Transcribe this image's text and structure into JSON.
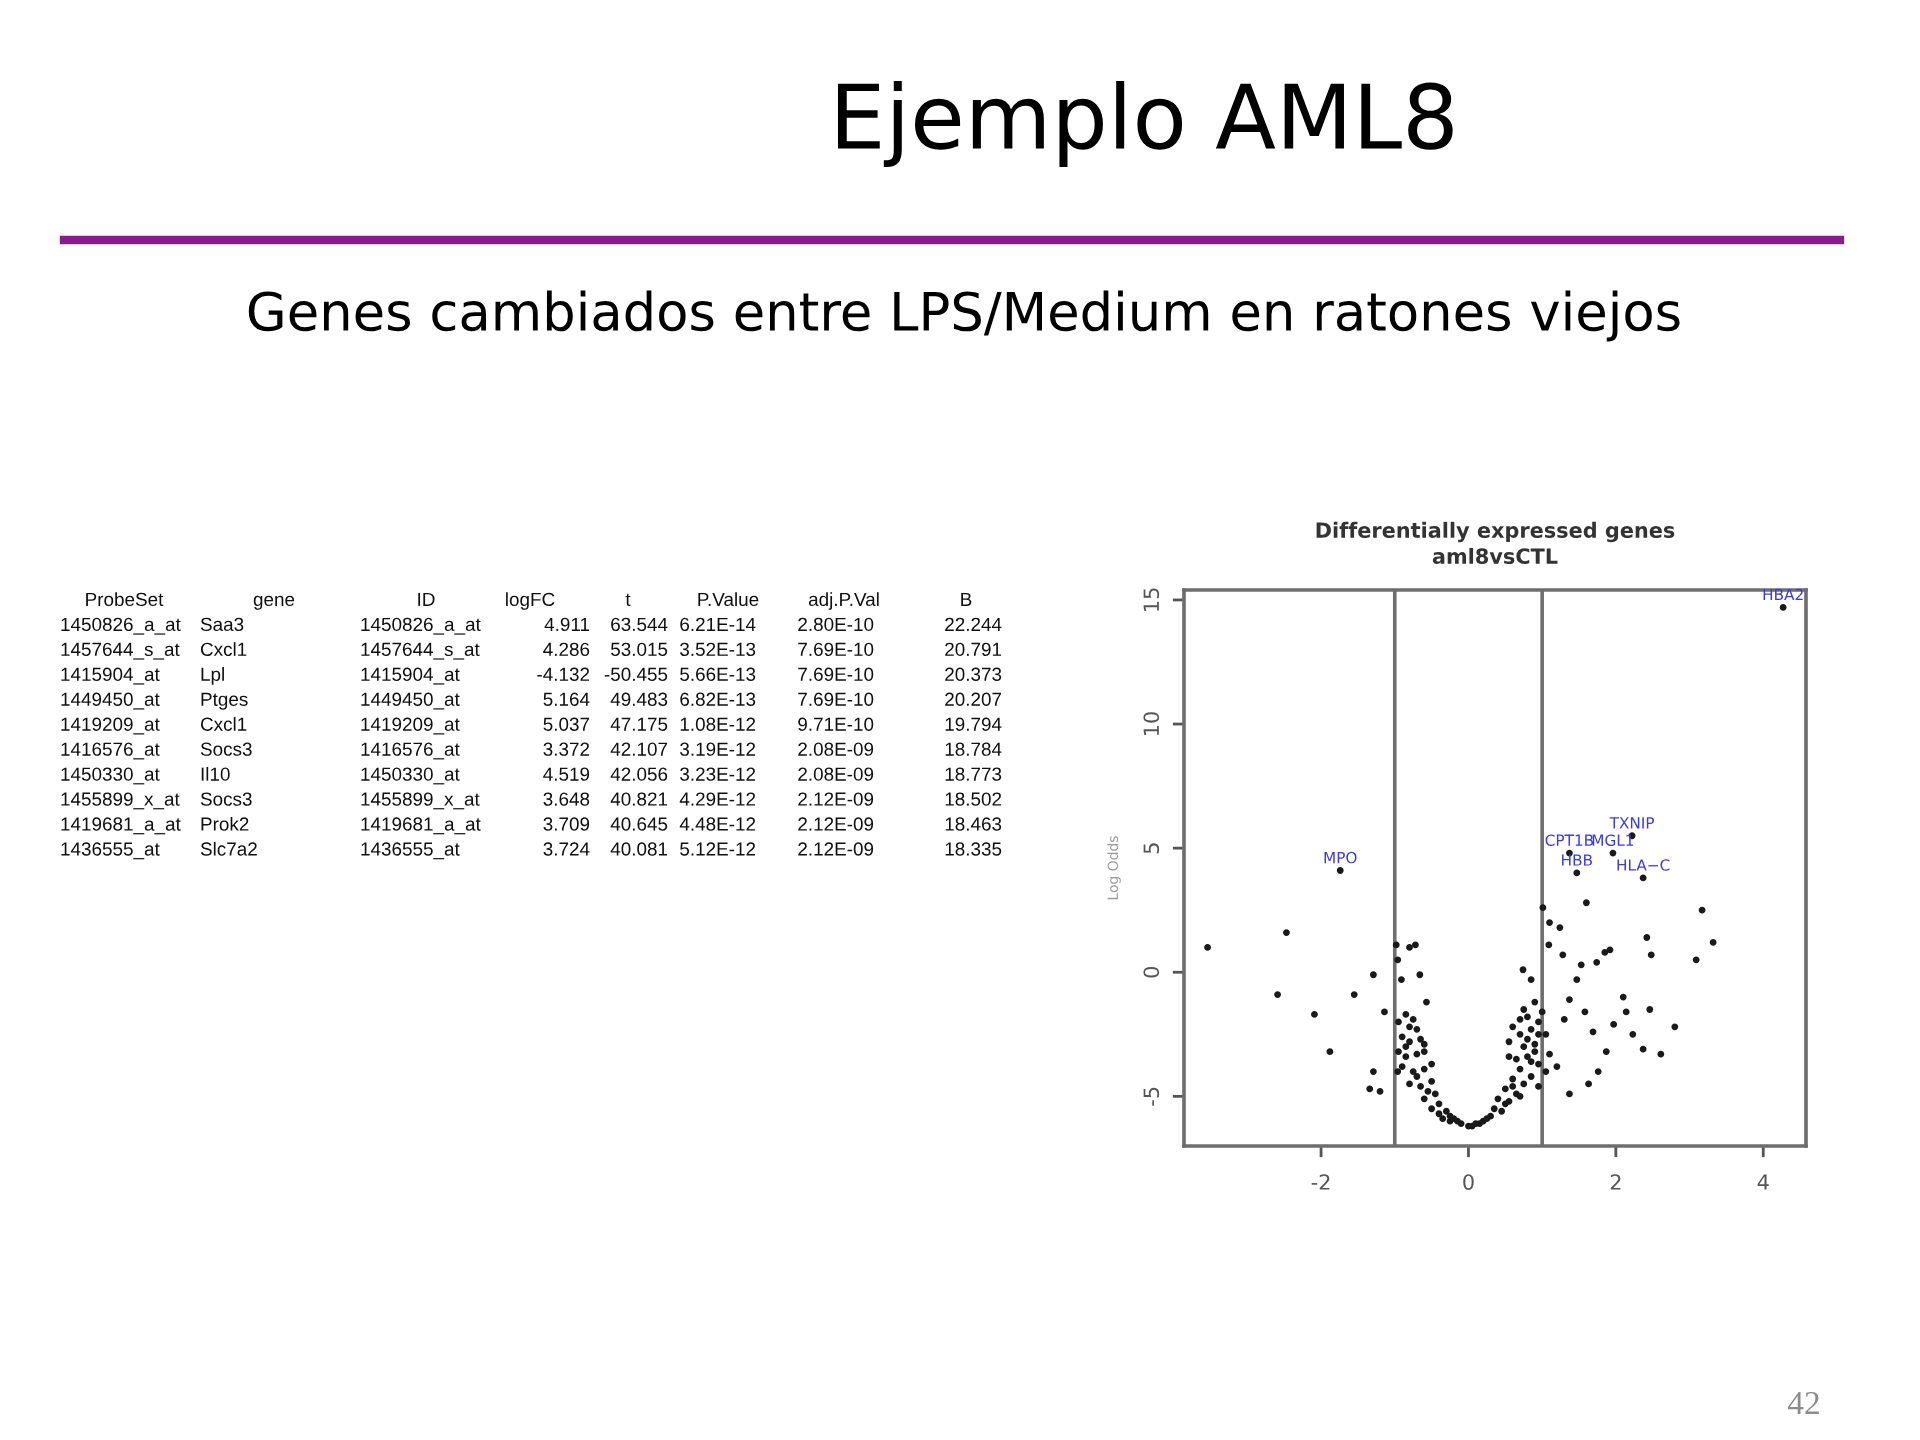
{
  "chart_data": [
    {
      "type": "other",
      "title": "Ejemplo AML8",
      "subtitle": "Genes cambiados entre LPS/Medium en ratones viejos",
      "categories": [
        "ProbeSet",
        "gene",
        "ID",
        "logFC",
        "t",
        "P.Value",
        "adj.P.Val",
        "B"
      ],
      "cell_labels": [
        [
          "1450826_a_at",
          "Saa3",
          "1450826_a_at",
          "4.911",
          "63.544",
          "6.21E-14",
          "2.80E-10",
          "22.244"
        ],
        [
          "1457644_s_at",
          "Cxcl1",
          "1457644_s_at",
          "4.286",
          "53.015",
          "3.52E-13",
          "7.69E-10",
          "20.791"
        ],
        [
          "1415904_at",
          "Lpl",
          "1415904_at",
          "-4.132",
          "-50.455",
          "5.66E-13",
          "7.69E-10",
          "20.373"
        ],
        [
          "1449450_at",
          "Ptges",
          "1449450_at",
          "5.164",
          "49.483",
          "6.82E-13",
          "7.69E-10",
          "20.207"
        ],
        [
          "1419209_at",
          "Cxcl1",
          "1419209_at",
          "5.037",
          "47.175",
          "1.08E-12",
          "9.71E-10",
          "19.794"
        ],
        [
          "1416576_at",
          "Socs3",
          "1416576_at",
          "3.372",
          "42.107",
          "3.19E-12",
          "2.08E-09",
          "18.784"
        ],
        [
          "1450330_at",
          "Il10",
          "1450330_at",
          "4.519",
          "42.056",
          "3.23E-12",
          "2.08E-09",
          "18.773"
        ],
        [
          "1455899_x_at",
          "Socs3",
          "1455899_x_at",
          "3.648",
          "40.821",
          "4.29E-12",
          "2.12E-09",
          "18.502"
        ],
        [
          "1419681_a_at",
          "Prok2",
          "1419681_a_at",
          "3.709",
          "40.645",
          "4.48E-12",
          "2.12E-09",
          "18.463"
        ],
        [
          "1436555_at",
          "Slc7a2",
          "1436555_at",
          "3.724",
          "40.081",
          "5.12E-12",
          "2.12E-09",
          "18.335"
        ]
      ],
      "annotations": [
        "42"
      ]
    },
    {
      "type": "scatter",
      "title": "Differentially expressed genes",
      "subtitle": "aml8vsCTL",
      "ylabel": "Log Odds",
      "marker": "circle",
      "series": [
        {
          "color": "#1a1a1a",
          "x": [
            -3.54,
            -2.47,
            -2.59,
            -2.09,
            -1.88,
            -1.55,
            -1.29,
            -1.29,
            -1.34,
            -1.2,
            -1.14,
            -0.98,
            -0.96,
            -0.8,
            -0.72,
            -0.91,
            -0.66,
            -0.57,
            -0.96,
            1.01,
            1.1,
            1.24,
            1.6,
            1.09,
            1.28,
            1.53,
            1.74,
            1.85,
            1.92,
            2.42,
            2.48,
            3.17,
            3.32,
            3.09,
            2.1,
            2.14,
            1.97,
            2.46,
            2.8,
            2.23,
            2.37,
            2.61,
            1.87,
            1.69,
            1.76,
            1.63,
            1.37,
            0.74,
            0.85,
            1.47,
            1.37,
            1.58,
            1.3,
            -0.95,
            -0.85,
            -0.75,
            -0.7,
            -0.9,
            -0.8,
            -0.65,
            -0.95,
            -0.85,
            -0.7,
            -0.6,
            -0.9,
            -0.75,
            -0.6,
            -0.5,
            -0.8,
            -0.65,
            -0.5,
            -0.45,
            -0.6,
            -0.4,
            -0.3,
            -0.5,
            -0.2,
            -0.35,
            -0.1,
            0,
            0.1,
            0.2,
            -0.25,
            0.3,
            0.35,
            0.45,
            0.4,
            0.55,
            0.5,
            0.65,
            0.6,
            0.75,
            0.7,
            0.85,
            0.95,
            0.65,
            0.8,
            0.95,
            0.75,
            0.9,
            0.7,
            0.85,
            0.95,
            0.8,
            0.9,
            0.75,
            0.6,
            0.55,
            1.05,
            1.1,
            1.2,
            1.05,
            0.55,
            -0.85,
            -0.7,
            -0.55,
            -0.4,
            -0.25,
            -0.15,
            -0.8,
            -0.6,
            0.05,
            0.15,
            0.25,
            0.5,
            0.7,
            0.85,
            0.6,
            0.9,
            0.8,
            0.95,
            1.0,
            0.7,
            4.27,
            2.22,
            1.37,
            1.96,
            -1.74,
            1.47,
            2.37
          ],
          "values": [
            1.0,
            1.6,
            -0.9,
            -1.7,
            -3.2,
            -0.9,
            -0.1,
            -4.0,
            -4.7,
            -4.8,
            -1.6,
            1.1,
            0.5,
            1.0,
            1.1,
            -0.3,
            -0.1,
            -1.2,
            -4.0,
            2.6,
            2.0,
            1.8,
            2.8,
            1.1,
            0.7,
            0.3,
            0.4,
            0.8,
            0.9,
            1.4,
            0.7,
            2.5,
            1.2,
            0.5,
            -1.0,
            -1.6,
            -2.1,
            -1.5,
            -2.2,
            -2.5,
            -3.1,
            -3.3,
            -3.2,
            -2.4,
            -4.0,
            -4.5,
            -4.9,
            0.1,
            -0.3,
            -0.3,
            -1.1,
            -1.6,
            -1.9,
            -2.0,
            -1.7,
            -1.9,
            -2.3,
            -2.6,
            -2.8,
            -2.7,
            -3.2,
            -3.4,
            -3.3,
            -3.2,
            -3.8,
            -4.0,
            -3.9,
            -3.7,
            -4.5,
            -4.6,
            -4.4,
            -4.9,
            -5.1,
            -5.3,
            -5.6,
            -5.5,
            -5.9,
            -5.9,
            -6.1,
            -6.2,
            -6.1,
            -6.0,
            -6.0,
            -5.8,
            -5.5,
            -5.6,
            -5.1,
            -5.2,
            -4.7,
            -4.9,
            -4.3,
            -4.5,
            -3.9,
            -4.2,
            -4.6,
            -3.5,
            -3.4,
            -3.7,
            -3.0,
            -2.9,
            -2.5,
            -2.3,
            -2.0,
            -1.8,
            -1.2,
            -1.5,
            -2.2,
            -2.8,
            -2.5,
            -3.3,
            -3.8,
            -4.0,
            -3.4,
            -3.0,
            -4.2,
            -4.8,
            -5.7,
            -5.8,
            -6.0,
            -2.2,
            -2.9,
            -6.2,
            -6.1,
            -5.9,
            -5.3,
            -5.0,
            -3.6,
            -4.6,
            -3.2,
            -2.7,
            -2.5,
            -1.6,
            -1.9,
            14.7,
            5.5,
            4.8,
            4.8,
            4.1,
            4.0,
            3.8
          ]
        }
      ],
      "xlim": [
        -3.86,
        4.58
      ],
      "ylim": [
        -7.0,
        15.4
      ],
      "xticks": [
        -2,
        0,
        2,
        4
      ],
      "yticks": [
        -5,
        0,
        5,
        10,
        15
      ],
      "ref_lines": [
        {
          "axis": "x",
          "value": -1,
          "color": "#6e6e6e"
        },
        {
          "axis": "x",
          "value": 1,
          "color": "#6e6e6e"
        }
      ],
      "annotations": [
        {
          "text": "HBA2",
          "x": 4.27,
          "y": 14.7
        },
        {
          "text": "TXNIP",
          "x": 2.22,
          "y": 5.5
        },
        {
          "text": "CPT1B",
          "x": 1.37,
          "y": 4.8
        },
        {
          "text": "MGL1",
          "x": 1.96,
          "y": 4.8
        },
        {
          "text": "MPO",
          "x": -1.74,
          "y": 4.1
        },
        {
          "text": "HBB",
          "x": 1.47,
          "y": 4.0
        },
        {
          "text": "HLA−C",
          "x": 2.37,
          "y": 3.8
        }
      ]
    }
  ]
}
